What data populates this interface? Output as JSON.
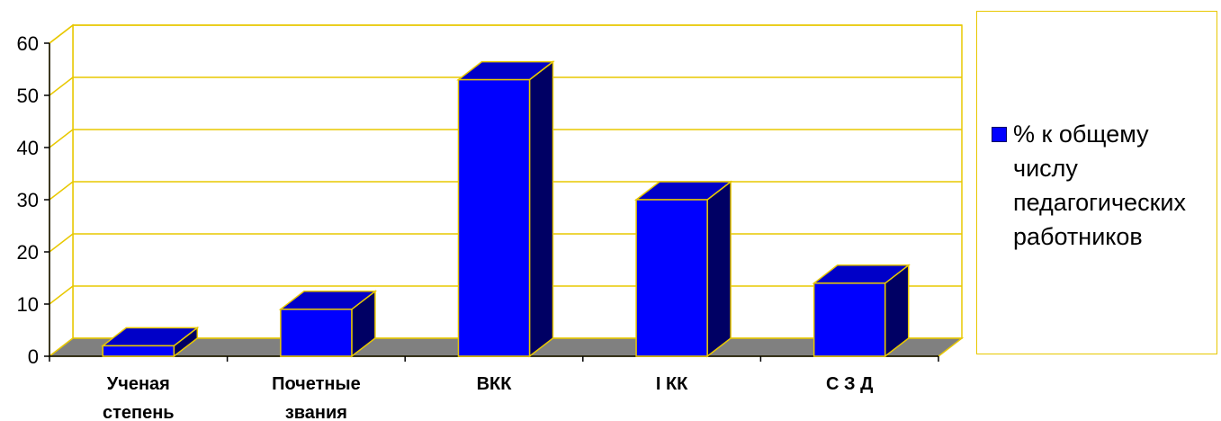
{
  "chart_data": {
    "type": "bar",
    "categories": [
      "Ученая степень",
      "Почетные звания",
      "ВКК",
      "I КК",
      "С З Д"
    ],
    "series": [
      {
        "name": "% к общему числу педагогических работников",
        "values": [
          2,
          9,
          53,
          30,
          14
        ]
      }
    ],
    "ylim": [
      0,
      60
    ],
    "yticks": [
      0,
      10,
      20,
      30,
      40,
      50,
      60
    ],
    "title": "",
    "xlabel": "",
    "ylabel": "",
    "grid": true,
    "legend_position": "right",
    "colors": {
      "bar_front": "#0000ff",
      "bar_top": "#0000c8",
      "bar_side": "#000064",
      "edges": "#e8c800",
      "floor": "#808080"
    }
  },
  "legend": {
    "label": "% к общему числу педагогических работников"
  }
}
